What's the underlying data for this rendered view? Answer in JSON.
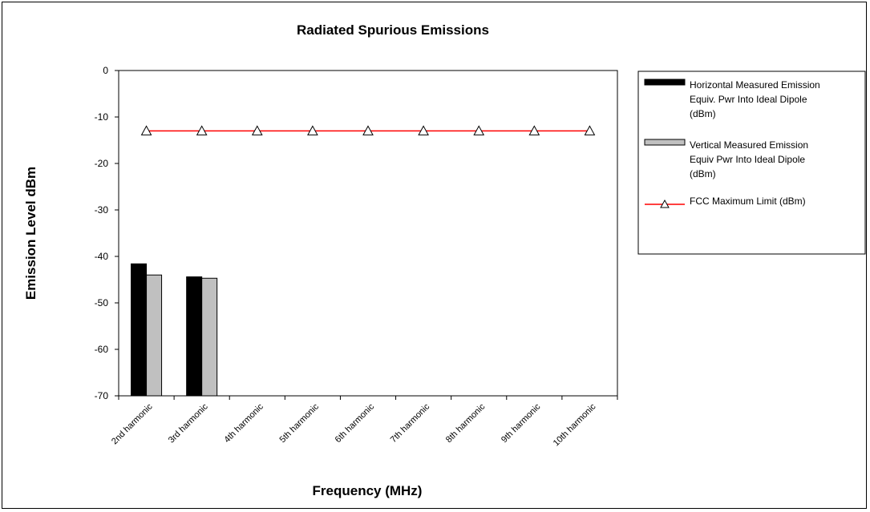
{
  "chart_data": {
    "type": "bar",
    "title": "Radiated Spurious Emissions",
    "xlabel": "Frequency (MHz)",
    "ylabel": "Emission Level dBm",
    "categories": [
      "2nd harmonic",
      "3rd harmonic",
      "4th harmonic",
      "5th harmonic",
      "6th harmonic",
      "7th harmonic",
      "8th harmonic",
      "9th harmonic",
      "10th harmonic"
    ],
    "ylim": [
      -70,
      0
    ],
    "yticks": [
      "0",
      "-10",
      "-20",
      "-30",
      "-40",
      "-50",
      "-60",
      "-70"
    ],
    "grid": false,
    "legend_position": "right",
    "series": [
      {
        "name": "Horizontal Measured Emission Equiv. Pwr Into Ideal Dipole (dBm)",
        "legend_lines": [
          "Horizontal Measured Emission",
          "Equiv. Pwr Into Ideal Dipole",
          "(dBm)"
        ],
        "kind": "bar",
        "color": "#000000",
        "values": [
          -41.6,
          -44.4,
          null,
          null,
          null,
          null,
          null,
          null,
          null
        ]
      },
      {
        "name": "Vertical Measured Emission Equiv Pwr Into Ideal Dipole (dBm)",
        "legend_lines": [
          "Vertical Measured Emission",
          "Equiv Pwr Into Ideal Dipole",
          "(dBm)"
        ],
        "kind": "bar",
        "color": "#c0c0c0",
        "values": [
          -44.0,
          -44.7,
          null,
          null,
          null,
          null,
          null,
          null,
          null
        ]
      },
      {
        "name": "FCC Maximum Limit (dBm)",
        "legend_lines": [
          "FCC Maximum Limit (dBm)"
        ],
        "kind": "line",
        "color": "#ff0000",
        "marker": "triangle",
        "values": [
          -13,
          -13,
          -13,
          -13,
          -13,
          -13,
          -13,
          -13,
          -13
        ]
      }
    ]
  }
}
